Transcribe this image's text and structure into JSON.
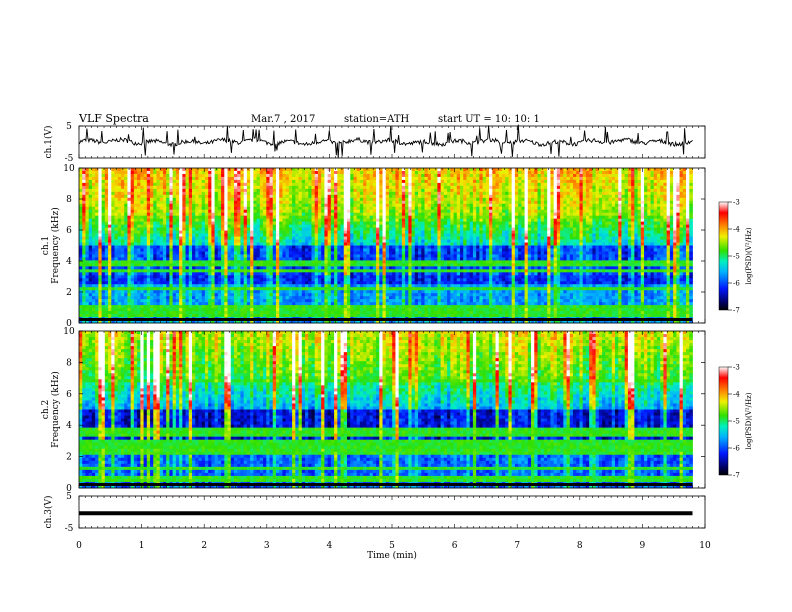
{
  "header": {
    "title": "VLF Spectra",
    "date": "Mar.7  , 2017",
    "station": "station=ATH",
    "start": "start  UT  =    10: 10: 1"
  },
  "chart_data": [
    {
      "type": "line",
      "ylabel": "ch.1(V)",
      "ylim": [
        -5,
        5
      ],
      "yticks": [
        "5",
        "-5"
      ],
      "xlim": [
        0,
        10
      ],
      "note": "noisy waveform near 0 V with frequent spikes"
    },
    {
      "type": "heatmap",
      "ylabel": "ch.1\nFrequency  (kHz)",
      "ylim": [
        0,
        10
      ],
      "yticks": [
        "0",
        "2",
        "4",
        "6",
        "8",
        "10"
      ],
      "xlim": [
        0,
        10
      ],
      "colorbar": {
        "label": "log(PSD)(V²/Hz)",
        "range": [
          -7,
          -3
        ],
        "ticks": [
          "-3",
          "-4",
          "-5",
          "-6",
          "-7"
        ]
      }
    },
    {
      "type": "heatmap",
      "ylabel": "ch.2\nFrequency  (kHz)",
      "ylim": [
        0,
        10
      ],
      "yticks": [
        "0",
        "2",
        "4",
        "6",
        "8",
        "10"
      ],
      "xlim": [
        0,
        10
      ],
      "colorbar": {
        "label": "log(PSD)(V²/Hz)",
        "range": [
          -7,
          -3
        ],
        "ticks": [
          "-3",
          "-4",
          "-5",
          "-6",
          "-7"
        ]
      }
    },
    {
      "type": "line",
      "ylabel": "ch.3(V)",
      "ylim": [
        -5,
        5
      ],
      "yticks": [
        "5",
        "-5"
      ],
      "xlim": [
        0,
        10
      ],
      "xlabel": "Time  (min)",
      "xticks": [
        "0",
        "1",
        "2",
        "3",
        "4",
        "5",
        "6",
        "7",
        "8",
        "9",
        "10"
      ],
      "note": "flat thick trace slightly below 0 V"
    }
  ]
}
